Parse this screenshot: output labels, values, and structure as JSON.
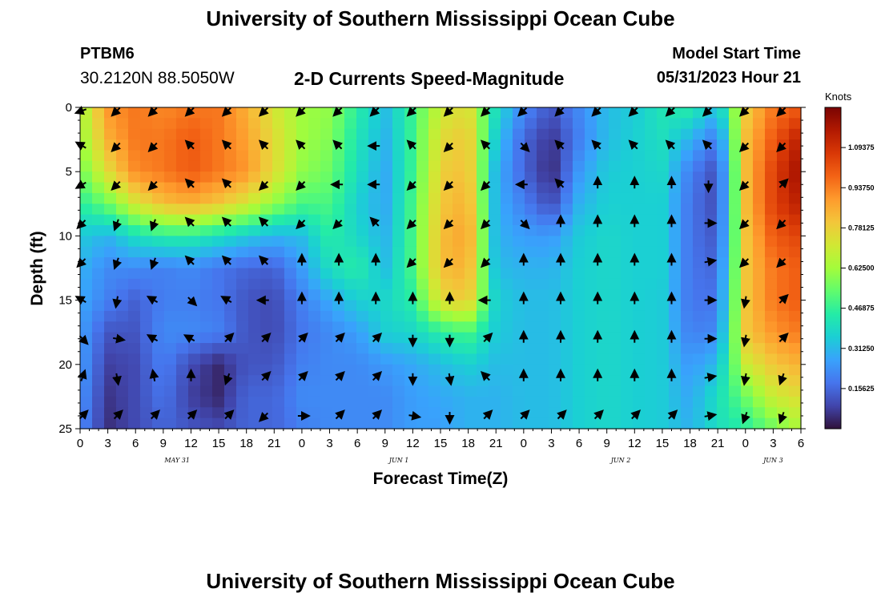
{
  "header": {
    "title": "University of Southern Mississippi Ocean Cube",
    "station": "PTBM6",
    "coords": "30.2120N  88.5050W",
    "subtitle": "2-D Currents Speed-Magnitude",
    "start_label": "Model Start Time",
    "start_value": "05/31/2023 Hour 21",
    "bottom_title": "University of Southern Mississippi Ocean Cube"
  },
  "chart_data": {
    "type": "heatmap",
    "title": "2-D Currents Speed-Magnitude",
    "xlabel": "Forecast Time(Z)",
    "ylabel": "Depth (ft)",
    "ylim": [
      25,
      0
    ],
    "y_ticks": [
      0,
      5,
      10,
      15,
      20,
      25
    ],
    "x_hours": [
      0,
      78
    ],
    "x_tick_labels": [
      "0",
      "3",
      "6",
      "9",
      "12",
      "15",
      "18",
      "21",
      "0",
      "3",
      "6",
      "9",
      "12",
      "15",
      "18",
      "21",
      "0",
      "3",
      "6",
      "9",
      "12",
      "15",
      "18",
      "21",
      "0",
      "3",
      "6"
    ],
    "day_labels": [
      {
        "label": "MAY 31",
        "hour": 10.5
      },
      {
        "label": "JUN 1",
        "hour": 34.5
      },
      {
        "label": "JUN 2",
        "hour": 58.5
      },
      {
        "label": "JUN 3",
        "hour": 75
      }
    ],
    "colorbar": {
      "unit": "Knots",
      "range": [
        0,
        1.25
      ],
      "ticks": [
        "0.15625",
        "0.31250",
        "0.46875",
        "0.62500",
        "0.78125",
        "0.93750",
        "1.09375"
      ],
      "colors": [
        "#30123b",
        "#4145ab",
        "#4675ed",
        "#39a2fc",
        "#1bcfd4",
        "#24eca6",
        "#61fc6c",
        "#a4fc3b",
        "#d1e834",
        "#f3c63a",
        "#fe9b2d",
        "#f36315",
        "#d93806",
        "#b11901",
        "#7a0403"
      ]
    },
    "speed_grid": {
      "depths_ft": [
        0,
        2.5,
        5,
        7.5,
        10,
        12.5,
        15,
        17.5,
        20,
        22.5,
        25
      ],
      "hours": [
        0,
        3,
        6,
        9,
        12,
        15,
        18,
        21,
        24,
        27,
        30,
        33,
        36,
        39,
        42,
        45,
        48,
        51,
        54,
        57,
        60,
        63,
        66,
        69,
        72,
        75,
        78
      ],
      "values": [
        [
          0.62,
          0.9,
          0.95,
          0.92,
          0.95,
          0.95,
          0.85,
          0.72,
          0.62,
          0.6,
          0.45,
          0.32,
          0.48,
          0.7,
          0.75,
          0.4,
          0.22,
          0.12,
          0.22,
          0.32,
          0.35,
          0.42,
          0.45,
          0.32,
          0.78,
          0.95,
          1.0
        ],
        [
          0.6,
          0.85,
          0.95,
          0.95,
          1.0,
          0.95,
          0.88,
          0.75,
          0.62,
          0.58,
          0.42,
          0.3,
          0.48,
          0.75,
          0.8,
          0.35,
          0.15,
          0.06,
          0.2,
          0.32,
          0.36,
          0.4,
          0.3,
          0.18,
          0.82,
          1.0,
          1.15
        ],
        [
          0.55,
          0.75,
          0.92,
          0.95,
          1.0,
          0.95,
          0.9,
          0.75,
          0.6,
          0.55,
          0.4,
          0.28,
          0.48,
          0.78,
          0.82,
          0.3,
          0.15,
          0.04,
          0.25,
          0.35,
          0.36,
          0.38,
          0.2,
          0.1,
          0.82,
          1.05,
          1.2
        ],
        [
          0.45,
          0.55,
          0.72,
          0.82,
          0.85,
          0.8,
          0.72,
          0.6,
          0.5,
          0.5,
          0.36,
          0.28,
          0.5,
          0.8,
          0.85,
          0.3,
          0.2,
          0.1,
          0.3,
          0.36,
          0.36,
          0.36,
          0.18,
          0.1,
          0.82,
          1.05,
          1.15
        ],
        [
          0.35,
          0.3,
          0.4,
          0.45,
          0.45,
          0.4,
          0.35,
          0.3,
          0.32,
          0.45,
          0.38,
          0.3,
          0.5,
          0.82,
          0.88,
          0.3,
          0.26,
          0.25,
          0.35,
          0.38,
          0.36,
          0.36,
          0.18,
          0.12,
          0.8,
          1.0,
          1.05
        ],
        [
          0.3,
          0.22,
          0.22,
          0.2,
          0.22,
          0.18,
          0.15,
          0.14,
          0.26,
          0.4,
          0.45,
          0.32,
          0.5,
          0.82,
          0.85,
          0.32,
          0.3,
          0.3,
          0.36,
          0.38,
          0.36,
          0.36,
          0.18,
          0.15,
          0.8,
          0.95,
          1.0
        ],
        [
          0.28,
          0.2,
          0.14,
          0.2,
          0.2,
          0.18,
          0.12,
          0.1,
          0.2,
          0.28,
          0.36,
          0.38,
          0.45,
          0.75,
          0.8,
          0.36,
          0.32,
          0.32,
          0.36,
          0.38,
          0.36,
          0.35,
          0.18,
          0.18,
          0.8,
          0.95,
          1.0
        ],
        [
          0.26,
          0.12,
          0.12,
          0.22,
          0.22,
          0.2,
          0.12,
          0.1,
          0.18,
          0.22,
          0.26,
          0.36,
          0.38,
          0.45,
          0.5,
          0.35,
          0.32,
          0.32,
          0.36,
          0.38,
          0.36,
          0.35,
          0.2,
          0.22,
          0.8,
          0.9,
          0.95
        ],
        [
          0.26,
          0.08,
          0.1,
          0.2,
          0.1,
          0.04,
          0.12,
          0.12,
          0.2,
          0.22,
          0.22,
          0.25,
          0.28,
          0.32,
          0.36,
          0.32,
          0.32,
          0.32,
          0.36,
          0.38,
          0.36,
          0.35,
          0.25,
          0.32,
          0.7,
          0.8,
          0.85
        ],
        [
          0.24,
          0.06,
          0.1,
          0.18,
          0.08,
          0.04,
          0.15,
          0.15,
          0.22,
          0.22,
          0.22,
          0.22,
          0.26,
          0.28,
          0.3,
          0.3,
          0.32,
          0.32,
          0.36,
          0.38,
          0.36,
          0.35,
          0.28,
          0.4,
          0.55,
          0.7,
          0.75
        ],
        [
          0.22,
          0.05,
          0.1,
          0.15,
          0.12,
          0.1,
          0.15,
          0.15,
          0.2,
          0.22,
          0.22,
          0.22,
          0.26,
          0.26,
          0.3,
          0.3,
          0.32,
          0.32,
          0.36,
          0.38,
          0.36,
          0.35,
          0.3,
          0.4,
          0.45,
          0.55,
          0.65
        ]
      ]
    },
    "arrow_grid": {
      "hours": [
        0,
        4,
        8,
        12,
        16,
        20,
        24,
        28,
        32,
        36,
        40,
        44,
        48,
        52,
        56,
        60,
        64,
        68,
        72,
        76
      ],
      "depths_ft": [
        0,
        3,
        6,
        9,
        12,
        15,
        18,
        21,
        24
      ],
      "directions_deg": [
        [
          250,
          225,
          225,
          225,
          225,
          225,
          225,
          225,
          225,
          225,
          225,
          225,
          225,
          225,
          225,
          225,
          225,
          225,
          225,
          225
        ],
        [
          300,
          225,
          225,
          315,
          315,
          315,
          315,
          315,
          270,
          315,
          225,
          315,
          135,
          315,
          315,
          315,
          315,
          315,
          225,
          225
        ],
        [
          240,
          225,
          225,
          315,
          315,
          225,
          225,
          270,
          270,
          225,
          225,
          225,
          270,
          315,
          0,
          0,
          0,
          180,
          225,
          45
        ],
        [
          225,
          200,
          200,
          315,
          315,
          315,
          225,
          225,
          315,
          225,
          225,
          225,
          135,
          0,
          0,
          0,
          0,
          90,
          225,
          225
        ],
        [
          225,
          200,
          200,
          315,
          315,
          315,
          0,
          0,
          0,
          225,
          225,
          225,
          0,
          0,
          0,
          0,
          0,
          80,
          225,
          225
        ],
        [
          300,
          190,
          300,
          135,
          300,
          270,
          0,
          0,
          0,
          0,
          0,
          270,
          0,
          0,
          0,
          0,
          0,
          90,
          190,
          45
        ],
        [
          135,
          100,
          300,
          300,
          45,
          45,
          45,
          45,
          45,
          180,
          180,
          45,
          0,
          0,
          0,
          0,
          0,
          90,
          190,
          45
        ],
        [
          20,
          170,
          350,
          0,
          200,
          45,
          45,
          45,
          45,
          180,
          170,
          315,
          0,
          0,
          0,
          0,
          0,
          80,
          190,
          200
        ],
        [
          45,
          45,
          45,
          45,
          45,
          225,
          90,
          45,
          45,
          100,
          180,
          45,
          45,
          45,
          45,
          45,
          45,
          80,
          200,
          200
        ]
      ]
    }
  }
}
